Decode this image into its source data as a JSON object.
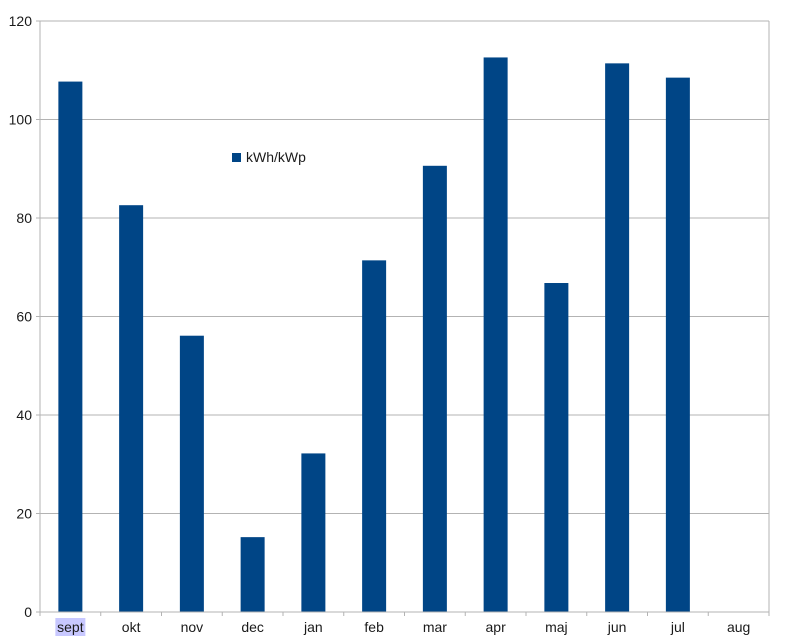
{
  "chart_data": {
    "type": "bar",
    "categories": [
      "sept",
      "okt",
      "nov",
      "dec",
      "jan",
      "feb",
      "mar",
      "apr",
      "maj",
      "jun",
      "jul",
      "aug"
    ],
    "series": [
      {
        "name": "kWh/kWp",
        "values": [
          107.7,
          82.6,
          56.1,
          15.2,
          32.2,
          71.4,
          90.6,
          112.6,
          66.8,
          111.4,
          108.5,
          null
        ]
      }
    ],
    "ylim": [
      0,
      120
    ],
    "yticks": [
      0,
      20,
      40,
      60,
      80,
      100,
      120
    ],
    "grid": true,
    "legend_position": "inside-top-left",
    "highlighted_category": "sept",
    "colors": {
      "bar": "#004586",
      "grid": "#b3b3b3",
      "axis": "#b3b3b3",
      "highlight": "#c8c8ff"
    }
  }
}
